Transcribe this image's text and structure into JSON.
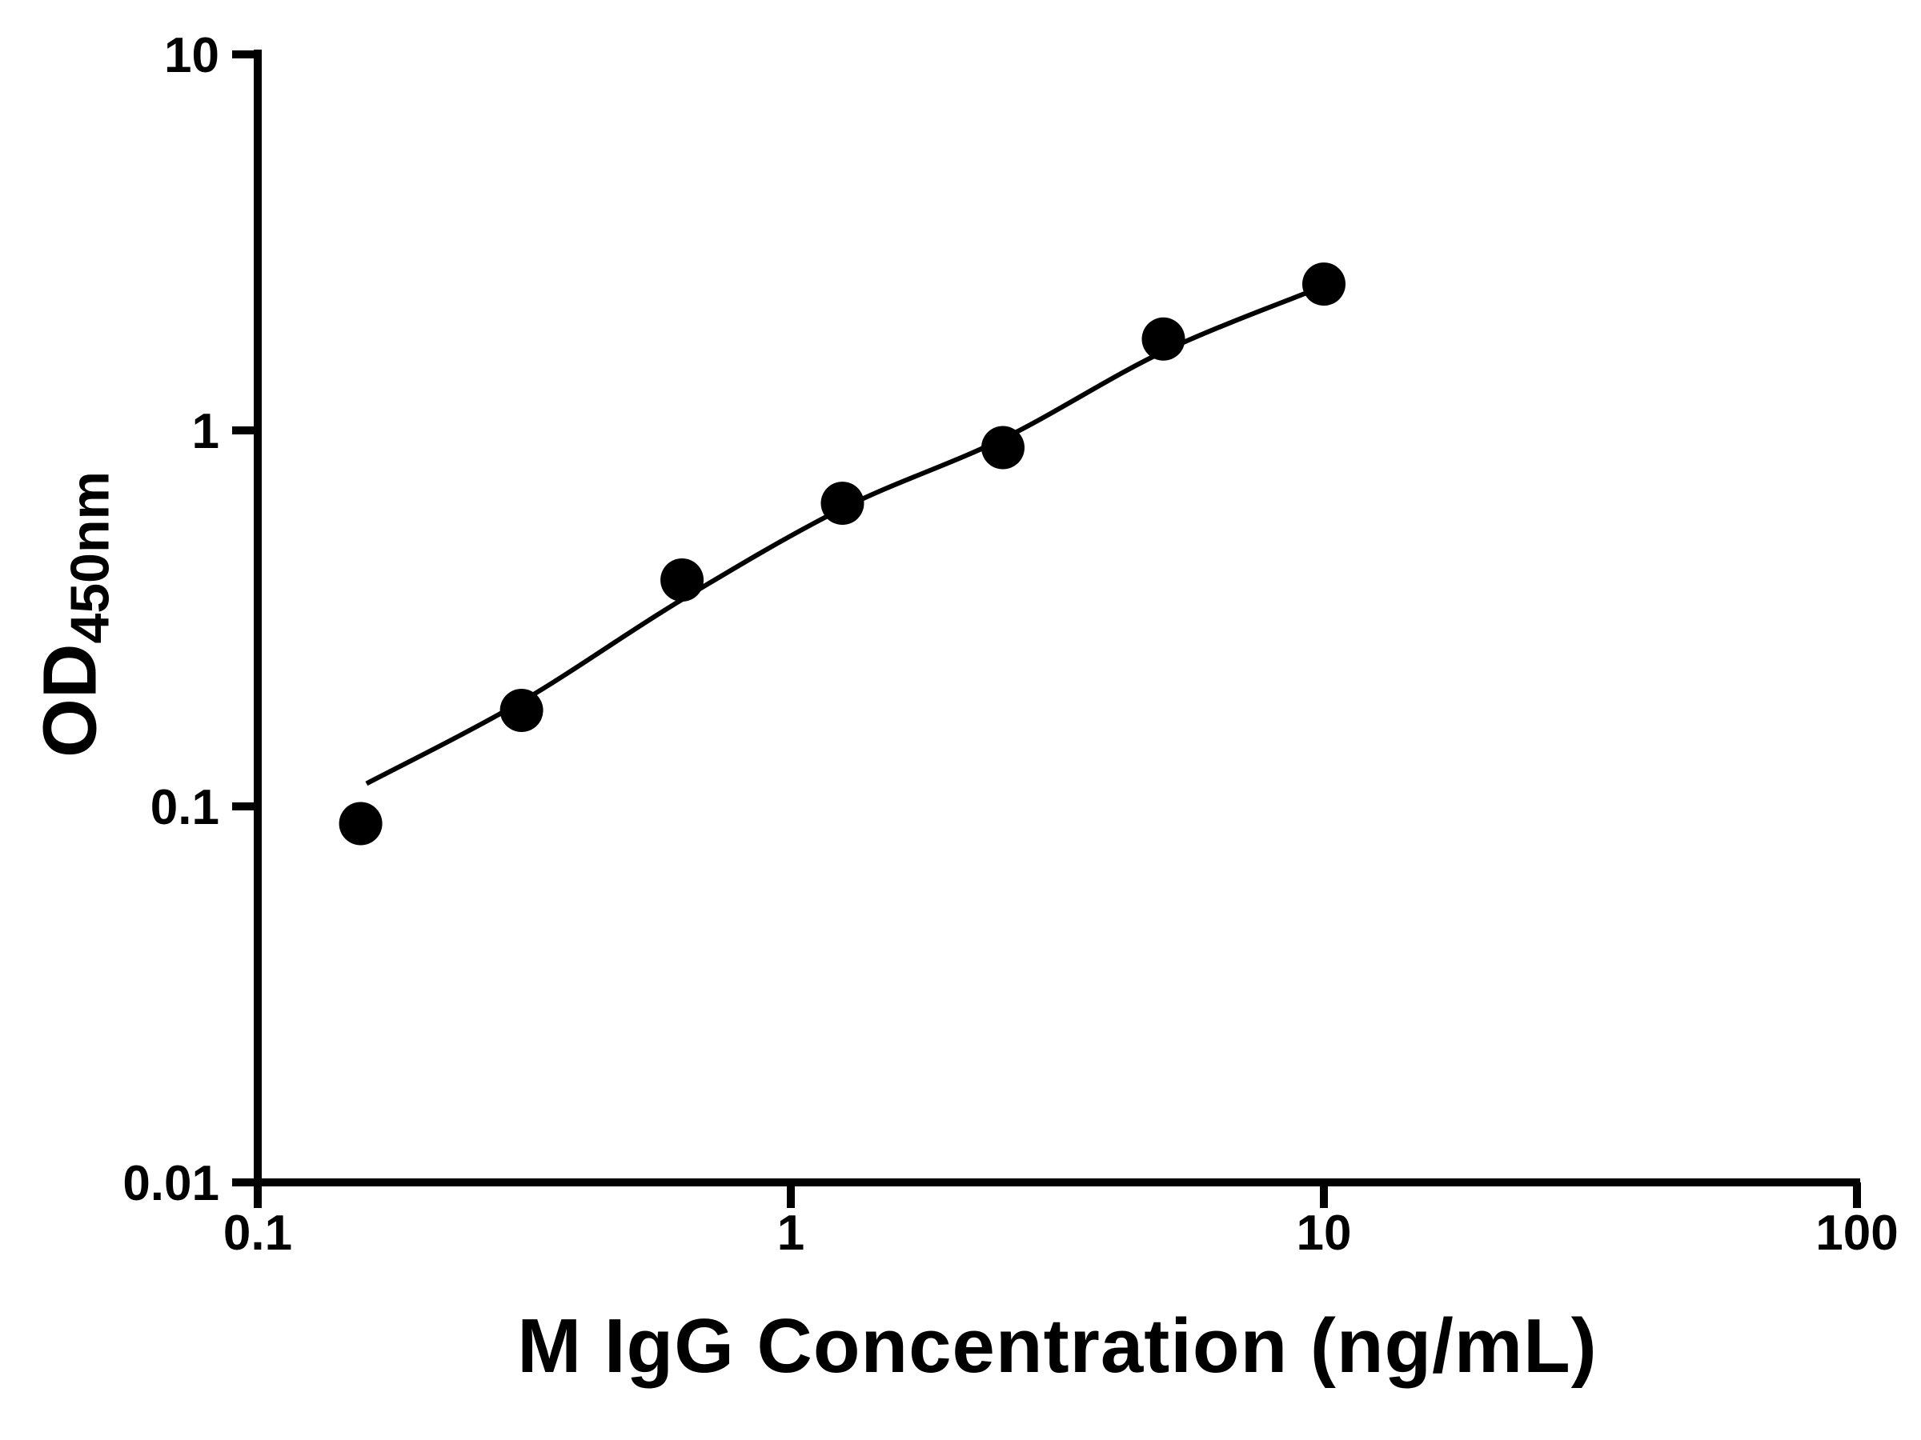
{
  "chart_data": {
    "type": "scatter",
    "title": "",
    "xlabel": "M IgG Concentration (ng/mL)",
    "ylabel_main": "OD",
    "ylabel_sub": "450nm",
    "x_scale": "log",
    "y_scale": "log",
    "xlim": [
      0.1,
      100
    ],
    "ylim": [
      0.01,
      10
    ],
    "x_ticks": [
      0.1,
      1,
      10,
      100
    ],
    "x_tick_labels": [
      "0.1",
      "1",
      "10",
      "100"
    ],
    "y_ticks": [
      0.01,
      0.1,
      1,
      10
    ],
    "y_tick_labels": [
      "0.01",
      "0.1",
      "1",
      "10"
    ],
    "grid": "off",
    "legend": "none",
    "series": [
      {
        "name": "standard-curve-points",
        "x": [
          0.156,
          0.3125,
          0.625,
          1.25,
          2.5,
          5,
          10
        ],
        "y": [
          0.09,
          0.18,
          0.4,
          0.64,
          0.9,
          1.75,
          2.45
        ]
      }
    ],
    "fit_curve": {
      "name": "fitted-curve",
      "x": [
        0.16,
        0.3125,
        0.625,
        1.25,
        2.5,
        5,
        10
      ],
      "y": [
        0.115,
        0.19,
        0.355,
        0.62,
        0.95,
        1.62,
        2.42
      ]
    },
    "marker_color": "#000000",
    "line_color": "#000000",
    "background": "#ffffff"
  }
}
